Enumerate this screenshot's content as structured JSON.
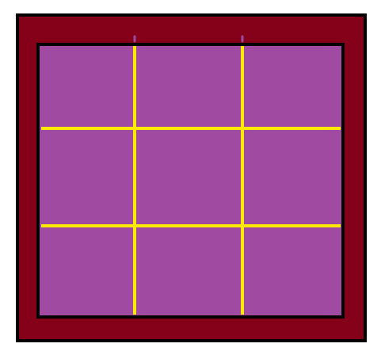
{
  "board": {
    "rows": 3,
    "cols": 3,
    "colors": {
      "frame": "#850019",
      "frame_outline": "#000000",
      "field": "#A14AA1",
      "grid_lines": "#FFEA00",
      "tick_marks": "#A14AA1"
    }
  }
}
